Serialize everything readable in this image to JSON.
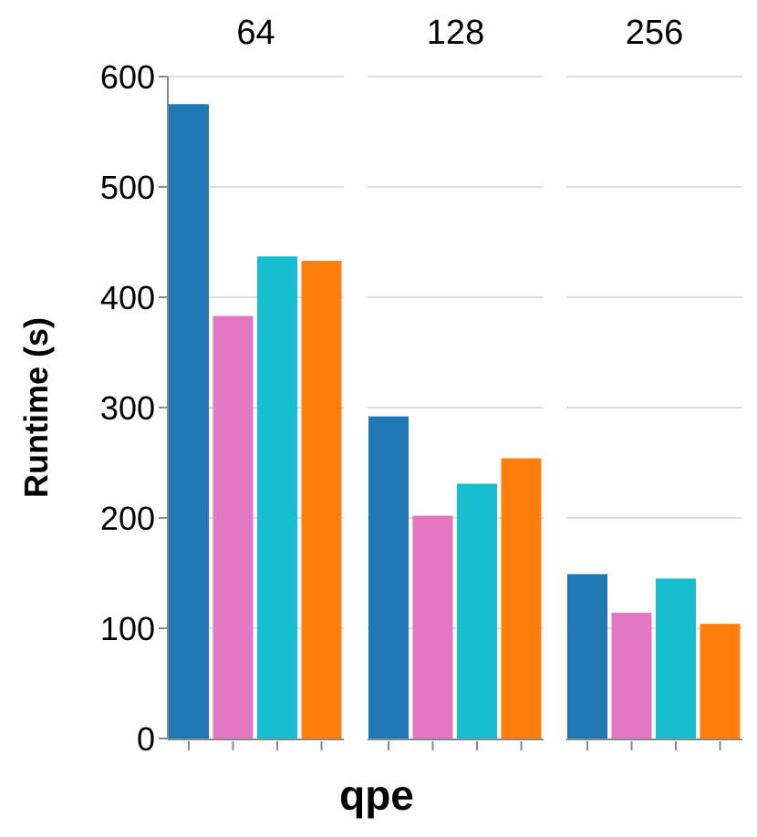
{
  "chart_data": {
    "type": "bar",
    "xlabel": "qpe",
    "ylabel": "Runtime (s)",
    "ylim": [
      0,
      600
    ],
    "yticks": [
      0,
      100,
      200,
      300,
      400,
      500,
      600
    ],
    "grid": true,
    "legend": "none",
    "colors": [
      "#1f77b4",
      "#e377c2",
      "#17becf",
      "#ff7f0e"
    ],
    "facets": [
      {
        "label": "64",
        "values": [
          575,
          383,
          437,
          433
        ]
      },
      {
        "label": "128",
        "values": [
          292,
          202,
          231,
          254
        ]
      },
      {
        "label": "256",
        "values": [
          149,
          114,
          145,
          104
        ]
      }
    ]
  }
}
